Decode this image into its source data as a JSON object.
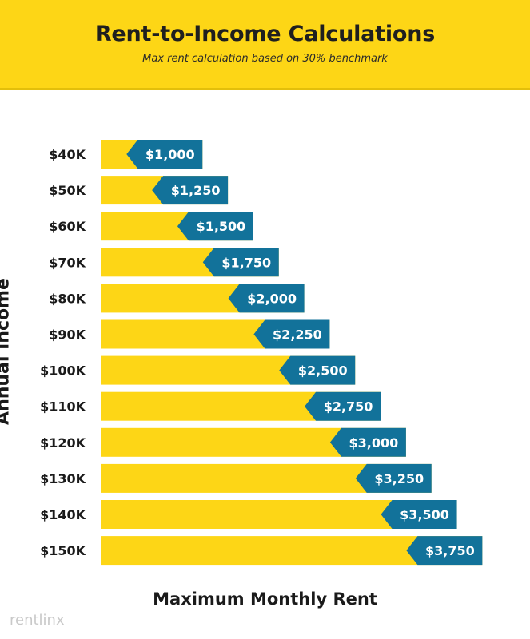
{
  "chart_data": {
    "type": "bar",
    "orientation": "horizontal",
    "title": "Rent-to-Income Calculations",
    "subtitle": "Max rent calculation based on 30% benchmark",
    "ylabel": "Annual Income",
    "xlabel": "Maximum Monthly Rent",
    "categories": [
      "$40K",
      "$50K",
      "$60K",
      "$70K",
      "$80K",
      "$90K",
      "$100K",
      "$110K",
      "$120K",
      "$130K",
      "$140K",
      "$150K"
    ],
    "values": [
      1000,
      1250,
      1500,
      1750,
      2000,
      2250,
      2500,
      2750,
      3000,
      3250,
      3500,
      3750
    ],
    "value_labels": [
      "$1,000",
      "$1,250",
      "$1,500",
      "$1,750",
      "$2,000",
      "$2,250",
      "$2,500",
      "$2,750",
      "$3,000",
      "$3,250",
      "$3,500",
      "$3,750"
    ],
    "grid": false,
    "legend": "none",
    "colors": {
      "bar": "#FDD616",
      "tag": "#12729A",
      "header": "#FDD616",
      "text": "#1a1a1a",
      "tag_text": "#ffffff"
    }
  },
  "watermark": "rentlinx"
}
